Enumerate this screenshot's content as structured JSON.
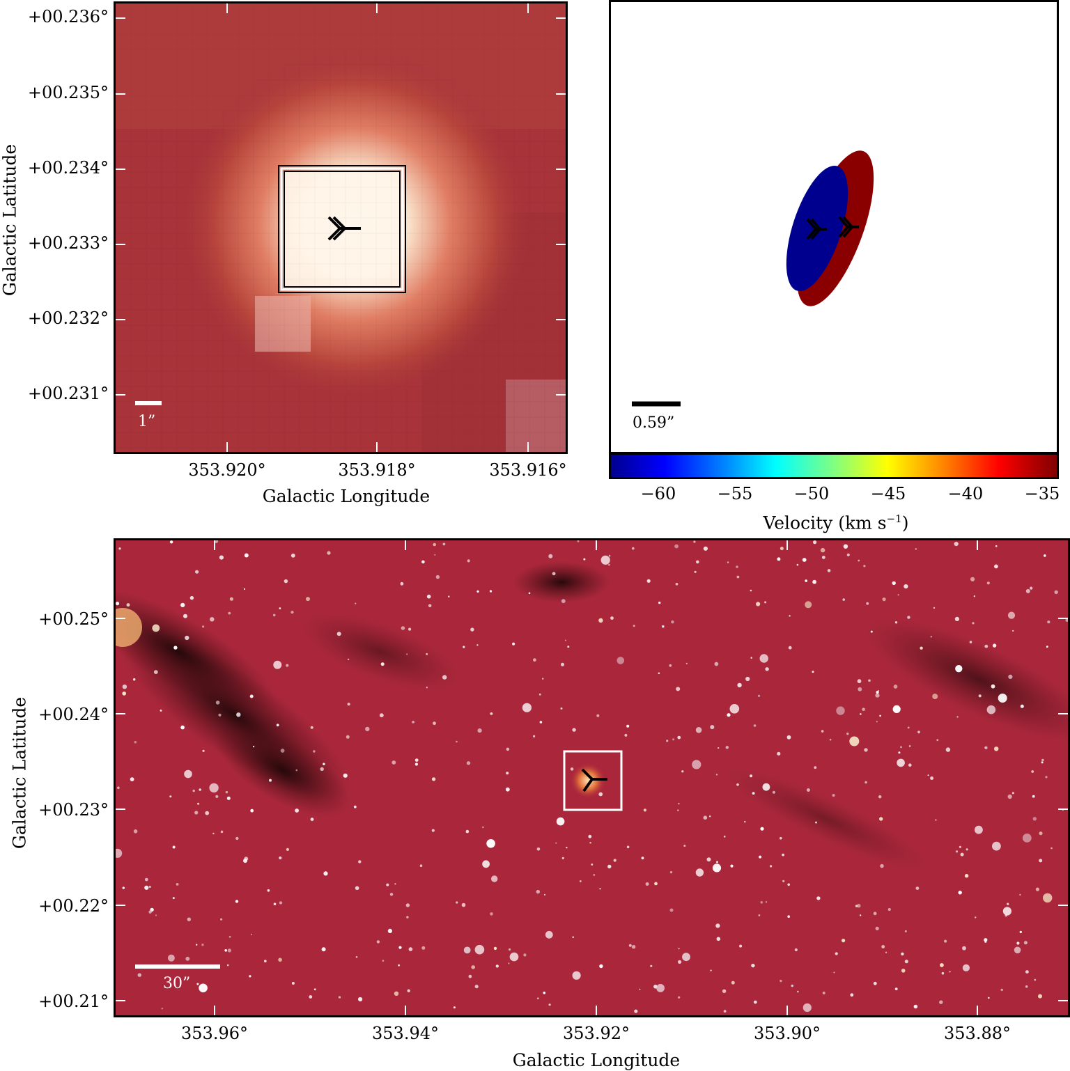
{
  "top_left": {
    "xlabel": "Galactic Longitude",
    "ylabel": "Galactic Latitude",
    "xticks": [
      "353.920°",
      "353.918°",
      "353.916°"
    ],
    "yticks": [
      "+00.236°",
      "+00.235°",
      "+00.234°",
      "+00.233°",
      "+00.232°",
      "+00.231°"
    ],
    "scalebar_label": "1”",
    "colors": {
      "background": "#a8343a",
      "core": "#fff6ea",
      "halo": "#e58a6e"
    }
  },
  "top_right": {
    "scalebar_label": "0.59”",
    "colorbar_label_main": "Velocity (km s",
    "colorbar_label_exp": "−1",
    "colorbar_label_close": ")",
    "colorbar_ticks": [
      "−60",
      "−55",
      "−50",
      "−45",
      "−40",
      "−35"
    ],
    "blue_color": "#00008e",
    "red_color": "#8a0000"
  },
  "bottom": {
    "xlabel": "Galactic Longitude",
    "ylabel": "Galactic Latitude",
    "xticks": [
      "353.96°",
      "353.94°",
      "353.92°",
      "353.90°",
      "353.88°"
    ],
    "yticks": [
      "+00.25°",
      "+00.24°",
      "+00.23°",
      "+00.22°",
      "+00.21°"
    ],
    "scalebar_label": "30”",
    "colors": {
      "background": "#a8243a",
      "dust": "#2a0a0a"
    }
  }
}
